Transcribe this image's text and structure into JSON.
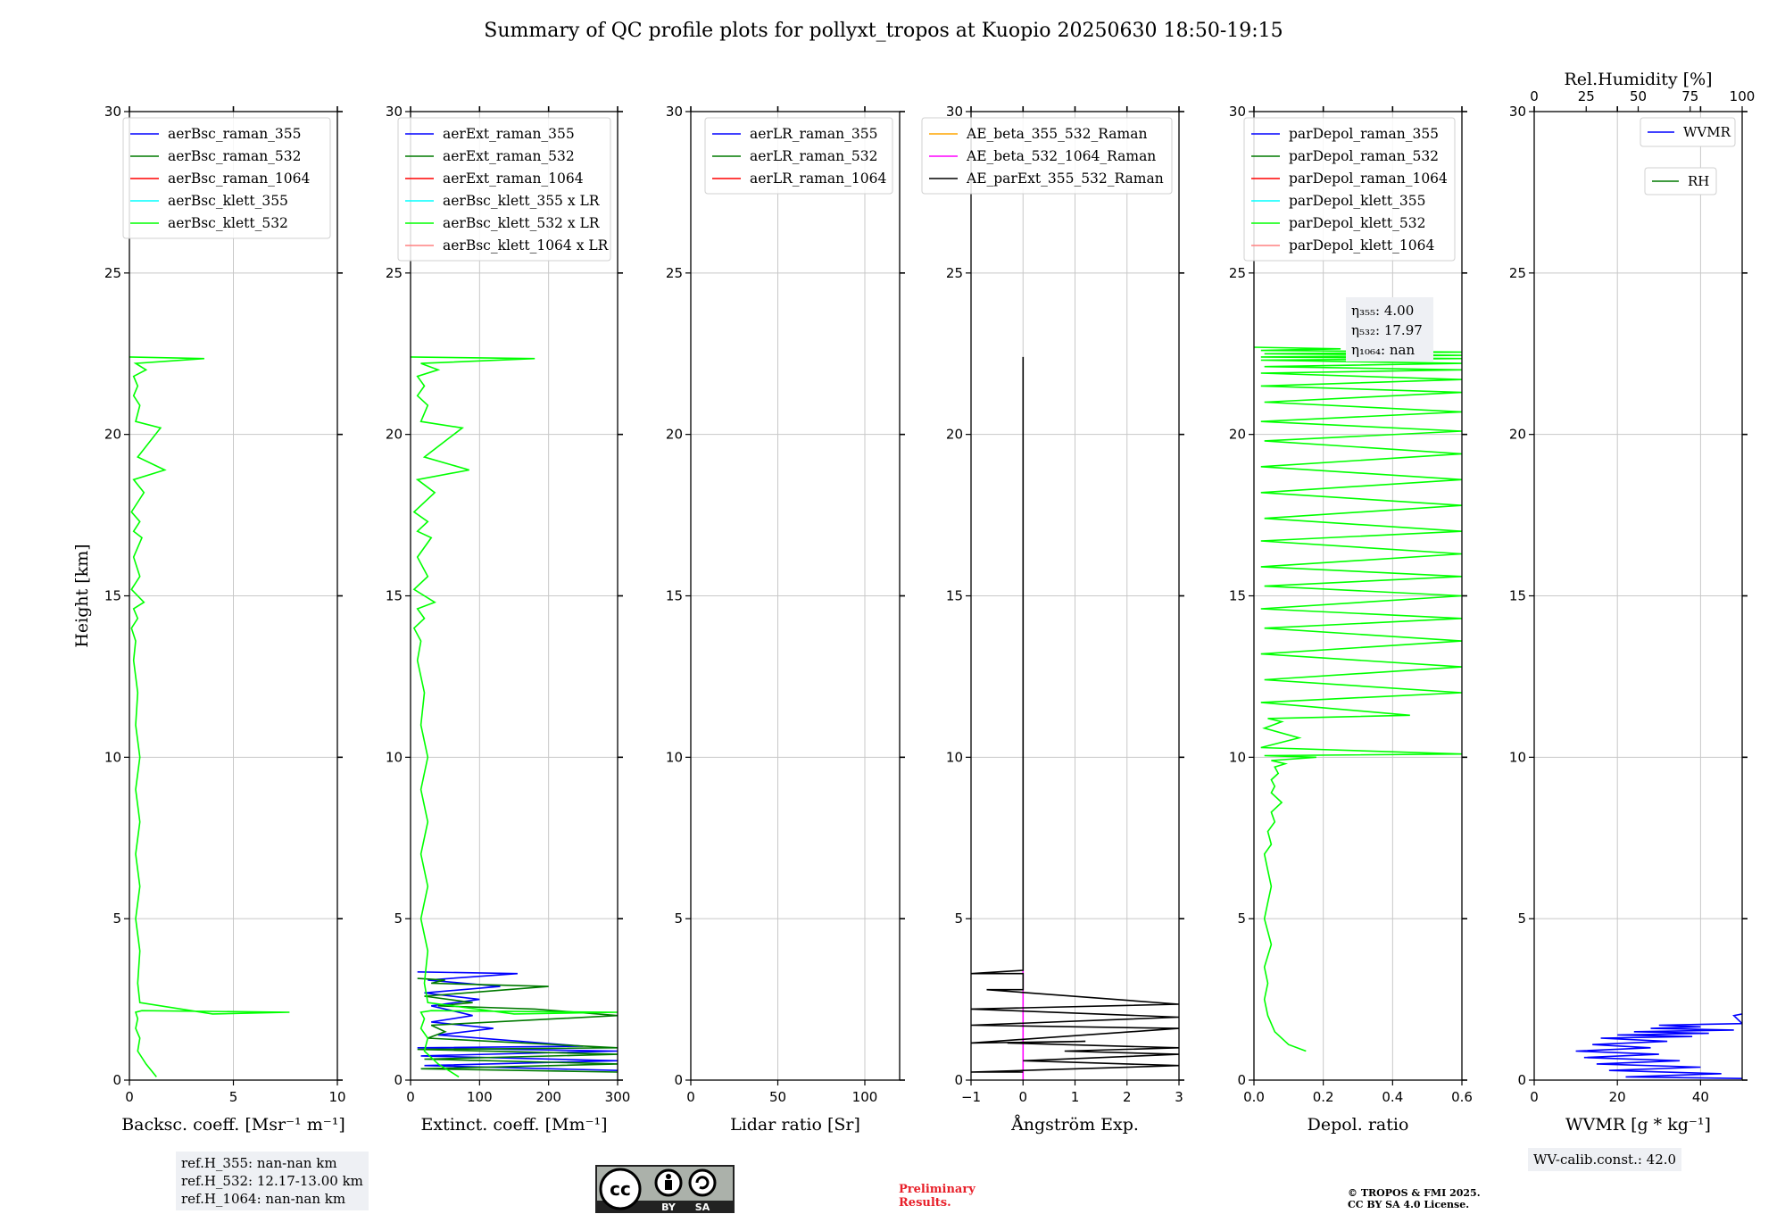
{
  "title": "Summary of QC profile plots for pollyxt_tropos at Kuopio 20250630 18:50-19:15",
  "colors": {
    "raman_355": "#0000ff",
    "raman_532": "#007a00",
    "raman_1064": "#ff0000",
    "klett_355": "#00ffff",
    "klett_532": "#00ff00",
    "klett_1064": "#ff8080",
    "ae_beta_355_532": "#ffa500",
    "ae_beta_532_1064": "#ff00ff",
    "ae_parext": "#000000",
    "wvmr": "#0000ff",
    "rh": "#007a00"
  },
  "chart_data": [
    {
      "type": "line",
      "panel": "backscatter",
      "xlabel": "Backsc. coeff. [Msr⁻¹ m⁻¹]",
      "ylabel": "Height [km]",
      "xlim": [
        0,
        10
      ],
      "ylim": [
        0,
        30
      ],
      "xticks": [
        0,
        5,
        10
      ],
      "yticks": [
        0,
        5,
        10,
        15,
        20,
        25,
        30
      ],
      "grid": true,
      "legend": "top-right",
      "series": [
        {
          "name": "aerBsc_raman_355",
          "color": "#0000ff",
          "x": [],
          "y": []
        },
        {
          "name": "aerBsc_raman_532",
          "color": "#007a00",
          "x": [],
          "y": []
        },
        {
          "name": "aerBsc_raman_1064",
          "color": "#ff0000",
          "x": [],
          "y": []
        },
        {
          "name": "aerBsc_klett_355",
          "color": "#00ffff",
          "x": [],
          "y": []
        },
        {
          "name": "aerBsc_klett_532",
          "color": "#00ff00",
          "x": [
            1.3,
            0.8,
            0.4,
            0.5,
            0.3,
            0.4,
            0.3,
            0.6,
            7.7,
            4.0,
            0.5,
            0.4,
            0.5,
            0.3,
            0.5,
            0.3,
            0.5,
            0.3,
            0.5,
            0.3,
            0.4,
            0.2,
            0.3,
            0.1,
            0.4,
            0.2,
            0.7,
            0.1,
            0.5,
            0.2,
            0.6,
            0.2,
            0.5,
            0.1,
            0.7,
            0.2,
            1.7,
            0.4,
            1.5,
            0.3,
            0.5,
            0.2,
            0.4,
            0.2,
            0.8,
            0.3,
            3.6,
            0.0
          ],
          "y": [
            0.1,
            0.5,
            0.9,
            1.3,
            1.6,
            1.9,
            2.1,
            2.15,
            2.1,
            2.05,
            2.4,
            3.0,
            4.0,
            5.0,
            6.0,
            7.0,
            8.0,
            9.0,
            10.0,
            11.0,
            12.0,
            13.0,
            13.6,
            14.0,
            14.3,
            14.6,
            14.8,
            15.2,
            15.6,
            16.2,
            16.8,
            17.0,
            17.3,
            17.6,
            18.2,
            18.6,
            18.9,
            19.3,
            20.2,
            20.4,
            20.9,
            21.2,
            21.5,
            21.8,
            22.0,
            22.2,
            22.35,
            22.4
          ]
        }
      ]
    },
    {
      "type": "line",
      "panel": "extinction",
      "xlabel": "Extinct. coeff. [Mm⁻¹]",
      "xlim": [
        0,
        300
      ],
      "ylim": [
        0,
        30
      ],
      "xticks": [
        0,
        100,
        200,
        300
      ],
      "yticks": [
        0,
        5,
        10,
        15,
        20,
        25,
        30
      ],
      "grid": true,
      "legend": "top-right",
      "series": [
        {
          "name": "aerExt_raman_355",
          "color": "#0000ff",
          "x": [
            300,
            20,
            300,
            15,
            300,
            10,
            250,
            40,
            120,
            30,
            90,
            60,
            30,
            100,
            20,
            130,
            25,
            155,
            10
          ],
          "y": [
            0.3,
            0.45,
            0.6,
            0.75,
            0.9,
            1.0,
            1.05,
            1.4,
            1.6,
            1.8,
            2.0,
            2.15,
            2.3,
            2.5,
            2.7,
            2.9,
            3.1,
            3.3,
            3.35
          ]
        },
        {
          "name": "aerExt_raman_532",
          "color": "#007a00",
          "x": [
            300,
            15,
            300,
            20,
            300,
            10,
            300,
            25,
            50,
            30,
            300,
            180,
            40,
            90,
            20,
            200,
            30,
            50,
            10
          ],
          "y": [
            0.25,
            0.35,
            0.5,
            0.65,
            0.8,
            0.95,
            1.0,
            1.3,
            1.5,
            1.7,
            2.0,
            2.2,
            2.3,
            2.4,
            2.6,
            2.9,
            3.0,
            3.1,
            3.15
          ]
        },
        {
          "name": "aerExt_raman_1064",
          "color": "#ff0000",
          "x": [],
          "y": []
        },
        {
          "name": "aerBsc_klett_355 x LR",
          "color": "#00ffff",
          "x": [],
          "y": []
        },
        {
          "name": "aerBsc_klett_532 x LR",
          "color": "#00ff00",
          "x": [
            70,
            40,
            20,
            25,
            15,
            20,
            15,
            30,
            300,
            150,
            25,
            20,
            25,
            15,
            25,
            15,
            25,
            15,
            25,
            15,
            20,
            10,
            15,
            5,
            20,
            10,
            35,
            5,
            25,
            10,
            30,
            10,
            25,
            5,
            35,
            10,
            85,
            20,
            75,
            15,
            25,
            10,
            20,
            10,
            40,
            15,
            180,
            0
          ],
          "y": [
            0.1,
            0.5,
            0.9,
            1.3,
            1.6,
            1.9,
            2.1,
            2.15,
            2.1,
            2.05,
            2.4,
            3.0,
            4.0,
            5.0,
            6.0,
            7.0,
            8.0,
            9.0,
            10.0,
            11.0,
            12.0,
            13.0,
            13.6,
            14.0,
            14.3,
            14.6,
            14.8,
            15.2,
            15.6,
            16.2,
            16.8,
            17.0,
            17.3,
            17.6,
            18.2,
            18.6,
            18.9,
            19.3,
            20.2,
            20.4,
            20.9,
            21.2,
            21.5,
            21.8,
            22.0,
            22.2,
            22.35,
            22.4
          ]
        },
        {
          "name": "aerBsc_klett_1064 x LR",
          "color": "#ff8080",
          "x": [],
          "y": []
        }
      ]
    },
    {
      "type": "line",
      "panel": "lidar-ratio",
      "xlabel": "Lidar ratio [Sr]",
      "xlim": [
        0,
        120
      ],
      "ylim": [
        0,
        30
      ],
      "xticks": [
        0,
        50,
        100
      ],
      "yticks": [
        0,
        5,
        10,
        15,
        20,
        25,
        30
      ],
      "grid": true,
      "legend": "top-right",
      "series": [
        {
          "name": "aerLR_raman_355",
          "color": "#0000ff",
          "x": [],
          "y": []
        },
        {
          "name": "aerLR_raman_532",
          "color": "#007a00",
          "x": [],
          "y": []
        },
        {
          "name": "aerLR_raman_1064",
          "color": "#ff0000",
          "x": [],
          "y": []
        }
      ]
    },
    {
      "type": "line",
      "panel": "angstrom",
      "xlabel": "Ångström Exp.",
      "xlim": [
        -1,
        3
      ],
      "ylim": [
        0,
        30
      ],
      "xticks": [
        -1,
        0,
        1,
        2,
        3
      ],
      "yticks": [
        0,
        5,
        10,
        15,
        20,
        25,
        30
      ],
      "grid": true,
      "legend": "top-right",
      "series": [
        {
          "name": "AE_beta_355_532_Raman",
          "color": "#ffa500",
          "x": [],
          "y": []
        },
        {
          "name": "AE_beta_532_1064_Raman",
          "color": "#ff00ff",
          "x": [
            0,
            0
          ],
          "y": [
            0.0,
            3.4
          ]
        },
        {
          "name": "AE_parExt_355_532_Raman",
          "color": "#000000",
          "x": [
            0,
            -1,
            0,
            3,
            0,
            3,
            0.8,
            3,
            -0.3,
            1.2,
            -1,
            3,
            -1,
            3,
            -1,
            3,
            -0.7,
            0,
            0,
            -1,
            0,
            0
          ],
          "y": [
            0.25,
            0.25,
            0.3,
            0.45,
            0.6,
            0.8,
            0.9,
            1.0,
            1.15,
            1.2,
            1.15,
            1.6,
            1.7,
            1.95,
            2.2,
            2.35,
            2.8,
            2.8,
            3.3,
            3.3,
            3.4,
            22.4
          ]
        }
      ]
    },
    {
      "type": "line",
      "panel": "depolarization",
      "xlabel": "Depol. ratio",
      "xlim": [
        0,
        0.6
      ],
      "ylim": [
        0,
        30
      ],
      "xticks": [
        0.0,
        0.2,
        0.4,
        0.6
      ],
      "yticks": [
        0,
        5,
        10,
        15,
        20,
        25,
        30
      ],
      "grid": true,
      "legend": "top-right",
      "series": [
        {
          "name": "parDepol_raman_355",
          "color": "#0000ff",
          "x": [],
          "y": []
        },
        {
          "name": "parDepol_raman_532",
          "color": "#007a00",
          "x": [],
          "y": []
        },
        {
          "name": "parDepol_raman_1064",
          "color": "#ff0000",
          "x": [],
          "y": []
        },
        {
          "name": "parDepol_klett_355",
          "color": "#00ffff",
          "x": [],
          "y": []
        },
        {
          "name": "parDepol_klett_532",
          "color": "#00ff00",
          "x": [
            0.15,
            0.1,
            0.06,
            0.04,
            0.03,
            0.04,
            0.03,
            0.05,
            0.03,
            0.04,
            0.05,
            0.04,
            0.03,
            0.05,
            0.04,
            0.06,
            0.05,
            0.08,
            0.05,
            0.06,
            0.05,
            0.07,
            0.06,
            0.09,
            0.05,
            0.18,
            0.03,
            0.6,
            0.02,
            0.13,
            0.03,
            0.08,
            0.04,
            0.45,
            0.02,
            0.6,
            0.03,
            0.6,
            0.02,
            0.6,
            0.03,
            0.6,
            0.02,
            0.6,
            0.03,
            0.6,
            0.02,
            0.6,
            0.02,
            0.6,
            0.03,
            0.6,
            0.02,
            0.6,
            0.02,
            0.6,
            0.03,
            0.6,
            0.02,
            0.6,
            0.03,
            0.6,
            0.02,
            0.6,
            0.02,
            0.6,
            0.03,
            0.6,
            0.02,
            0.6,
            0.02,
            0.6,
            0.03,
            0.6,
            0.02,
            0.25,
            0.0
          ],
          "y": [
            0.9,
            1.1,
            1.5,
            2.0,
            2.5,
            3.0,
            3.5,
            4.2,
            5.0,
            5.5,
            6.0,
            6.5,
            7.0,
            7.3,
            7.7,
            8.0,
            8.3,
            8.6,
            8.9,
            9.1,
            9.3,
            9.5,
            9.7,
            9.8,
            9.9,
            10.0,
            10.05,
            10.1,
            10.3,
            10.6,
            10.9,
            11.1,
            11.2,
            11.3,
            11.7,
            12.0,
            12.4,
            12.8,
            13.2,
            13.6,
            14.0,
            14.3,
            14.6,
            15.0,
            15.3,
            15.6,
            15.9,
            16.3,
            16.7,
            17.0,
            17.4,
            17.8,
            18.2,
            18.6,
            19.0,
            19.4,
            19.8,
            20.1,
            20.4,
            20.7,
            21.0,
            21.3,
            21.5,
            21.7,
            21.9,
            22.0,
            22.1,
            22.2,
            22.3,
            22.35,
            22.4,
            22.45,
            22.5,
            22.55,
            22.6,
            22.65,
            22.7
          ]
        },
        {
          "name": "parDepol_klett_1064",
          "color": "#ff8080",
          "x": [],
          "y": []
        }
      ],
      "eta_box": [
        "η₃₅₅: 4.00",
        "η₅₃₂: 17.97",
        "η₁₀₆₄: nan"
      ]
    },
    {
      "type": "line",
      "panel": "water-vapor",
      "xlabel": "WVMR [g * kg⁻¹]",
      "xlabel_top": "Rel.Humidity [%]",
      "xlim": [
        0,
        50
      ],
      "xlim_top": [
        0,
        100
      ],
      "ylim": [
        0,
        30
      ],
      "xticks": [
        0,
        20,
        40
      ],
      "xticks_top": [
        0,
        25,
        50,
        75,
        100
      ],
      "yticks": [
        0,
        5,
        10,
        15,
        20,
        25,
        30
      ],
      "grid": true,
      "legend": "top-right",
      "series": [
        {
          "name": "WVMR",
          "color": "#0000ff",
          "x": [
            50,
            22,
            45,
            18,
            40,
            15,
            35,
            12,
            30,
            10,
            28,
            14,
            32,
            16,
            38,
            20,
            42,
            24,
            48,
            28,
            40,
            30,
            50,
            48,
            50
          ],
          "y": [
            0.05,
            0.1,
            0.2,
            0.3,
            0.4,
            0.5,
            0.6,
            0.7,
            0.8,
            0.9,
            1.0,
            1.1,
            1.2,
            1.3,
            1.35,
            1.4,
            1.45,
            1.5,
            1.55,
            1.6,
            1.65,
            1.7,
            1.75,
            2.0,
            2.05
          ]
        },
        {
          "name": "RH",
          "color": "#007a00",
          "x": [],
          "y": []
        }
      ]
    }
  ],
  "ref_box": [
    "ref.H_355: nan-nan km",
    "ref.H_532: 12.17-13.00 km",
    "ref.H_1064: nan-nan km"
  ],
  "wv_calib": "WV-calib.const.: 42.0",
  "cc_logo": {
    "cc": "cc",
    "by": "BY",
    "sa": "SA"
  },
  "preliminary": [
    "Preliminary",
    "Results."
  ],
  "copyright": [
    "© TROPOS & FMI 2025.",
    "CC BY SA 4.0 License."
  ]
}
